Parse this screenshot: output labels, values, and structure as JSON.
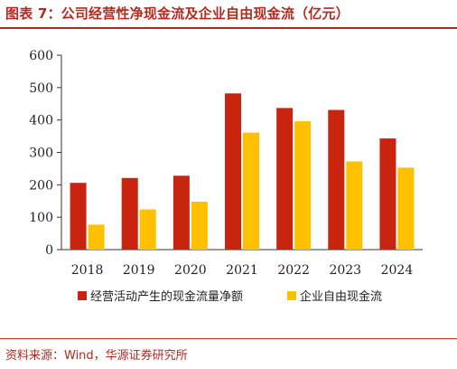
{
  "header": {
    "title": "图表 7：公司经营性净现金流及企业自由现金流（亿元）"
  },
  "footer": {
    "source": "资料来源：Wind，华源证券研究所"
  },
  "colors": {
    "series1": "#c8240e",
    "series2": "#ffc000",
    "accent": "#b5291e"
  },
  "chart_data": {
    "type": "bar",
    "title": "图表 7：公司经营性净现金流及企业自由现金流（亿元）",
    "categories": [
      "2018",
      "2019",
      "2020",
      "2021",
      "2022",
      "2023",
      "2024"
    ],
    "series": [
      {
        "name": "经营活动产生的现金流量净额",
        "values": [
          206,
          221,
          228,
          482,
          437,
          431,
          343
        ]
      },
      {
        "name": "企业自由现金流",
        "values": [
          77,
          124,
          148,
          361,
          396,
          272,
          253
        ]
      }
    ],
    "ylim": [
      0,
      600
    ],
    "yticks": [
      0,
      100,
      200,
      300,
      400,
      500,
      600
    ],
    "grid": false,
    "legend": "bottom"
  }
}
